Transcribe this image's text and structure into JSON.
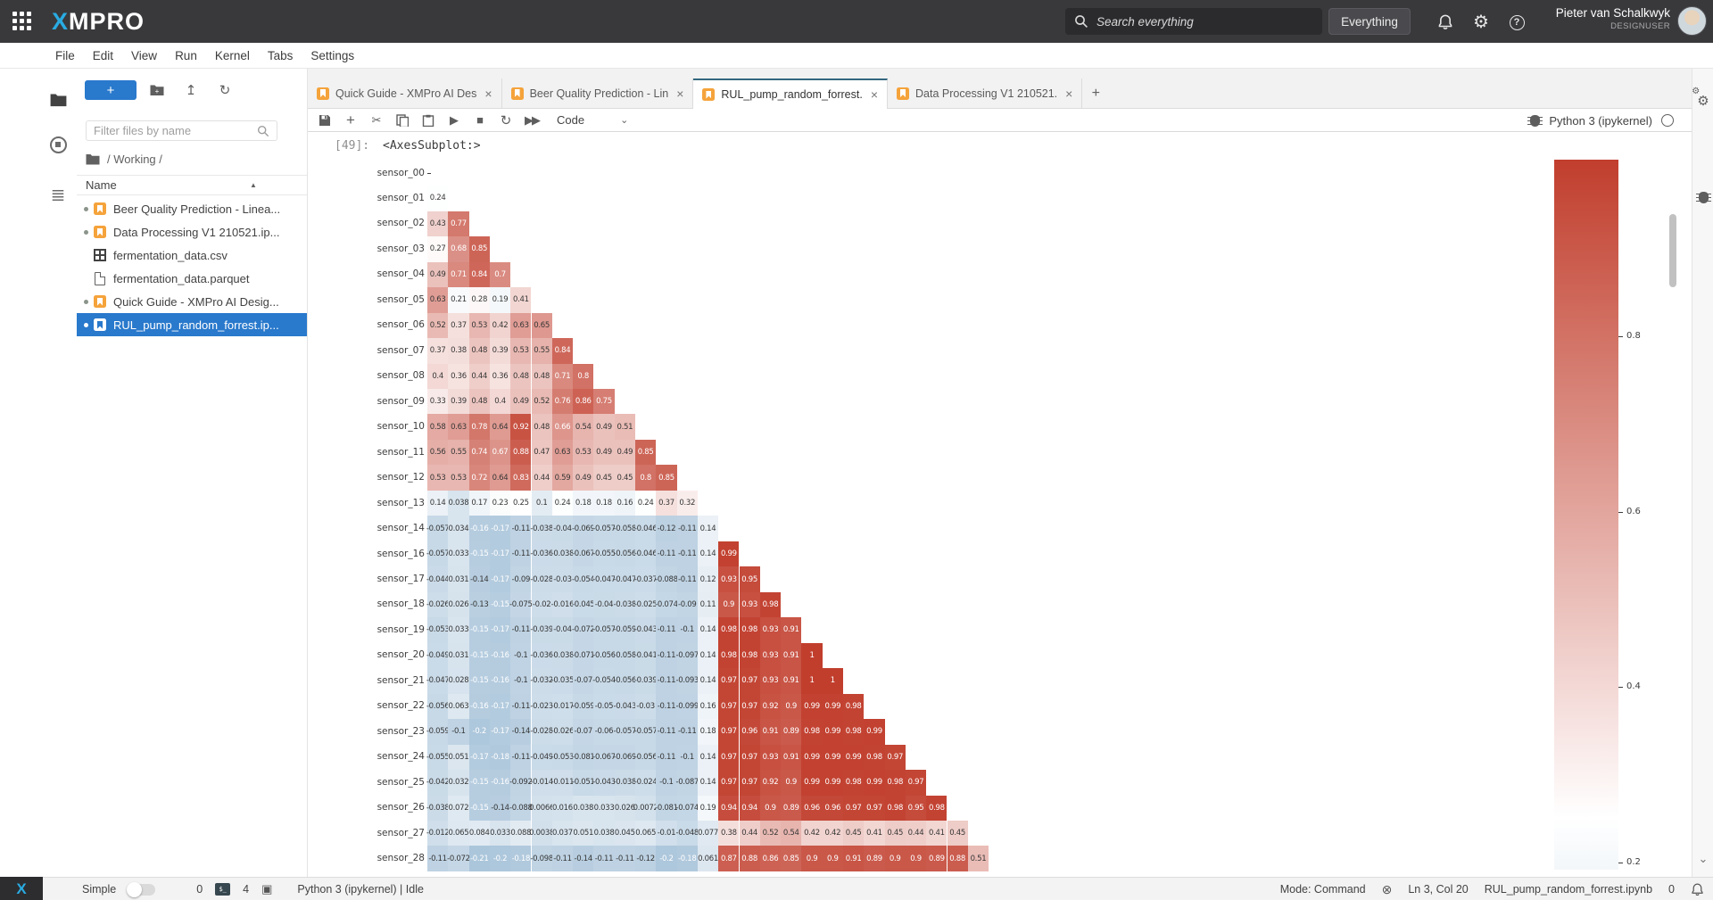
{
  "app": {
    "brand_first": "X",
    "brand_rest": "MPRO",
    "search_placeholder": "Search everything",
    "search_scope_label": "Everything",
    "user_name": "Pieter van Schalkwyk",
    "user_role": "DESIGNUSER"
  },
  "menu": {
    "items": [
      "File",
      "Edit",
      "View",
      "Run",
      "Kernel",
      "Tabs",
      "Settings"
    ]
  },
  "sidebar": {
    "new_launcher_label": "+",
    "filter_placeholder": "Filter files by name",
    "breadcrumb": "/ Working /",
    "name_header": "Name",
    "files": [
      {
        "label": "Beer Quality Prediction - Linea...",
        "type": "notebook",
        "running": true,
        "selected": false
      },
      {
        "label": "Data Processing V1 210521.ip...",
        "type": "notebook",
        "running": true,
        "selected": false
      },
      {
        "label": "fermentation_data.csv",
        "type": "csv",
        "running": false,
        "selected": false
      },
      {
        "label": "fermentation_data.parquet",
        "type": "file",
        "running": false,
        "selected": false
      },
      {
        "label": "Quick Guide - XMPro AI Desig...",
        "type": "notebook",
        "running": true,
        "selected": false
      },
      {
        "label": "RUL_pump_random_forrest.ip...",
        "type": "notebook",
        "running": true,
        "selected": true
      }
    ]
  },
  "tabs": [
    {
      "label": "Quick Guide - XMPro AI Des",
      "active": false
    },
    {
      "label": "Beer Quality Prediction - Lin",
      "active": false
    },
    {
      "label": "RUL_pump_random_forrest.",
      "active": true
    },
    {
      "label": "Data Processing V1 210521.",
      "active": false
    }
  ],
  "toolbar": {
    "icons": [
      {
        "name": "save-button",
        "glyph": "svg-save"
      },
      {
        "name": "insert-cell-button",
        "glyph": "+"
      },
      {
        "name": "cut-cells-button",
        "glyph": "✂"
      },
      {
        "name": "copy-cells-button",
        "glyph": "svg-copy"
      },
      {
        "name": "paste-cells-button",
        "glyph": "svg-paste"
      },
      {
        "name": "run-cell-button",
        "glyph": "▶"
      },
      {
        "name": "stop-kernel-button",
        "glyph": "■"
      },
      {
        "name": "restart-kernel-button",
        "glyph": "↻"
      },
      {
        "name": "run-all-cells-button",
        "glyph": "▶▶"
      }
    ],
    "cell_type": "Code",
    "kernel_label": "Python 3 (ipykernel)"
  },
  "output": {
    "prompt": "[49]:",
    "text": "<AxesSubplot:>"
  },
  "chart_data": {
    "type": "heatmap",
    "title": "",
    "description": "Lower-triangle annotated correlation matrix of pump sensors (diagonal masked)",
    "row_labels": [
      "sensor_00",
      "sensor_01",
      "sensor_02",
      "sensor_03",
      "sensor_04",
      "sensor_05",
      "sensor_06",
      "sensor_07",
      "sensor_08",
      "sensor_09",
      "sensor_10",
      "sensor_11",
      "sensor_12",
      "sensor_13",
      "sensor_14",
      "sensor_16",
      "sensor_17",
      "sensor_18",
      "sensor_19",
      "sensor_20",
      "sensor_21",
      "sensor_22",
      "sensor_23",
      "sensor_24",
      "sensor_25",
      "sensor_26",
      "sensor_27",
      "sensor_28"
    ],
    "cells": [
      [],
      [
        "0.24"
      ],
      [
        "0.43",
        "0.77"
      ],
      [
        "0.27",
        "0.68",
        "0.85"
      ],
      [
        "0.49",
        "0.71",
        "0.84",
        "0.7"
      ],
      [
        "0.63",
        "0.21",
        "0.28",
        "0.19",
        "0.41"
      ],
      [
        "0.52",
        "0.37",
        "0.53",
        "0.42",
        "0.63",
        "0.65"
      ],
      [
        "0.37",
        "0.38",
        "0.48",
        "0.39",
        "0.53",
        "0.55",
        "0.84"
      ],
      [
        "0.4",
        "0.36",
        "0.44",
        "0.36",
        "0.48",
        "0.48",
        "0.71",
        "0.8"
      ],
      [
        "0.33",
        "0.39",
        "0.48",
        "0.4",
        "0.49",
        "0.52",
        "0.76",
        "0.86",
        "0.75"
      ],
      [
        "0.58",
        "0.63",
        "0.78",
        "0.64",
        "0.92",
        "0.48",
        "0.66",
        "0.54",
        "0.49",
        "0.51"
      ],
      [
        "0.56",
        "0.55",
        "0.74",
        "0.67",
        "0.88",
        "0.47",
        "0.63",
        "0.53",
        "0.49",
        "0.49",
        "0.85"
      ],
      [
        "0.53",
        "0.53",
        "0.72",
        "0.64",
        "0.83",
        "0.44",
        "0.59",
        "0.49",
        "0.45",
        "0.45",
        "0.8",
        "0.85"
      ],
      [
        "0.14",
        "0.038",
        "0.17",
        "0.23",
        "0.25",
        "0.1",
        "0.24",
        "0.18",
        "0.18",
        "0.16",
        "0.24",
        "0.37",
        "0.32"
      ],
      [
        "-0.057",
        "0.034",
        "-0.16",
        "-0.17",
        "-0.11",
        "-0.038",
        "-0.04",
        "-0.069",
        "-0.057",
        "-0.058",
        "-0.046",
        "-0.12",
        "-0.11",
        "0.14"
      ],
      [
        "-0.057",
        "0.033",
        "-0.15",
        "-0.17",
        "-0.11",
        "-0.036",
        "-0.038",
        "-0.067",
        "-0.055",
        "-0.056",
        "-0.046",
        "-0.11",
        "-0.11",
        "0.14",
        "0.99"
      ],
      [
        "-0.044",
        "0.031",
        "-0.14",
        "-0.17",
        "-0.09",
        "-0.028",
        "-0.03",
        "-0.054",
        "-0.047",
        "-0.047",
        "-0.037",
        "-0.088",
        "-0.11",
        "0.12",
        "0.93",
        "0.95"
      ],
      [
        "-0.026",
        "0.026",
        "-0.13",
        "-0.15",
        "-0.075",
        "-0.02",
        "-0.016",
        "-0.045",
        "-0.04",
        "-0.038",
        "-0.025",
        "-0.074",
        "-0.09",
        "0.11",
        "0.9",
        "0.93",
        "0.98"
      ],
      [
        "-0.053",
        "0.033",
        "-0.15",
        "-0.17",
        "-0.11",
        "-0.039",
        "-0.04",
        "-0.072",
        "-0.057",
        "-0.059",
        "-0.043",
        "-0.11",
        "-0.1",
        "0.14",
        "0.98",
        "0.98",
        "0.93",
        "0.91"
      ],
      [
        "-0.049",
        "0.031",
        "-0.15",
        "-0.16",
        "-0.1",
        "-0.036",
        "-0.038",
        "-0.071",
        "-0.056",
        "-0.058",
        "-0.041",
        "-0.11",
        "-0.097",
        "0.14",
        "0.98",
        "0.98",
        "0.93",
        "0.91",
        "1"
      ],
      [
        "-0.047",
        "0.028",
        "-0.15",
        "-0.16",
        "-0.1",
        "-0.032",
        "-0.035",
        "-0.07",
        "-0.054",
        "-0.056",
        "-0.039",
        "-0.11",
        "-0.093",
        "0.14",
        "0.97",
        "0.97",
        "0.93",
        "0.91",
        "1",
        "1"
      ],
      [
        "-0.056",
        "0.063",
        "-0.16",
        "-0.17",
        "-0.11",
        "-0.023",
        "-0.017",
        "-0.059",
        "-0.05",
        "-0.043",
        "-0.03",
        "-0.11",
        "-0.099",
        "0.16",
        "0.97",
        "0.97",
        "0.92",
        "0.9",
        "0.99",
        "0.99",
        "0.98"
      ],
      [
        "-0.059",
        "-0.1",
        "-0.2",
        "-0.17",
        "-0.14",
        "-0.028",
        "-0.026",
        "-0.07",
        "-0.06",
        "-0.057",
        "-0.057",
        "-0.11",
        "-0.11",
        "0.18",
        "0.97",
        "0.96",
        "0.91",
        "0.89",
        "0.98",
        "0.99",
        "0.98",
        "0.99"
      ],
      [
        "-0.055",
        "0.051",
        "-0.17",
        "-0.18",
        "-0.11",
        "-0.049",
        "-0.053",
        "-0.081",
        "-0.067",
        "-0.069",
        "-0.056",
        "-0.11",
        "-0.1",
        "0.14",
        "0.97",
        "0.97",
        "0.93",
        "0.91",
        "0.99",
        "0.99",
        "0.99",
        "0.98",
        "0.97"
      ],
      [
        "-0.042",
        "0.032",
        "-0.15",
        "-0.16",
        "-0.092",
        "-0.014",
        "-0.011",
        "-0.051",
        "-0.043",
        "-0.038",
        "-0.024",
        "-0.1",
        "-0.087",
        "0.14",
        "0.97",
        "0.97",
        "0.92",
        "0.9",
        "0.99",
        "0.99",
        "0.98",
        "0.99",
        "0.98",
        "0.97"
      ],
      [
        "-0.038",
        "0.072",
        "-0.15",
        "-0.14",
        "-0.088",
        "0.0066",
        "0.016",
        "0.038",
        "0.033",
        "0.026",
        "0.0072",
        "-0.081",
        "-0.074",
        "0.19",
        "0.94",
        "0.94",
        "0.9",
        "0.89",
        "0.96",
        "0.96",
        "0.97",
        "0.97",
        "0.98",
        "0.95",
        "0.98"
      ],
      [
        "-0.012",
        "0.065",
        "0.084",
        "0.033",
        "0.088",
        "0.0038",
        "0.037",
        "0.051",
        "0.038",
        "0.045",
        "0.065",
        "-0.01",
        "-0.048",
        "0.077",
        "0.38",
        "0.44",
        "0.52",
        "0.54",
        "0.42",
        "0.42",
        "0.45",
        "0.41",
        "0.45",
        "0.44",
        "0.41",
        "0.45"
      ],
      [
        "-0.11",
        "-0.072",
        "-0.21",
        "-0.2",
        "-0.18",
        "-0.098",
        "-0.11",
        "-0.14",
        "-0.11",
        "-0.11",
        "-0.12",
        "-0.2",
        "-0.18",
        "0.061",
        "0.87",
        "0.88",
        "0.86",
        "0.85",
        "0.9",
        "0.9",
        "0.91",
        "0.89",
        "0.9",
        "0.9",
        "0.89",
        "0.88",
        "0.51"
      ]
    ],
    "colorbar": {
      "ticks": [
        "0.8",
        "0.6",
        "0.4",
        "0.2"
      ],
      "top_value": 1.0
    },
    "palette": {
      "positive_end": "#c13e2d",
      "negative_end": "#92b4d0",
      "center_value": 0.25
    },
    "legend_position": "right"
  },
  "statusbar": {
    "simple_label": "Simple",
    "terminals_count": "0",
    "kernels_count": "4",
    "kernel_status": "Python 3 (ipykernel) | Idle",
    "mode": "Mode: Command",
    "position": "Ln 3, Col 20",
    "filename": "RUL_pump_random_forrest.ipynb",
    "notifications_count": "0"
  },
  "colors": {
    "topbar_bg": "#39393c",
    "brand_accent": "#29abe2",
    "selection_blue": "#2979cc",
    "active_tab_border": "#34677f",
    "notebook_icon_orange": "#f5a33b"
  }
}
